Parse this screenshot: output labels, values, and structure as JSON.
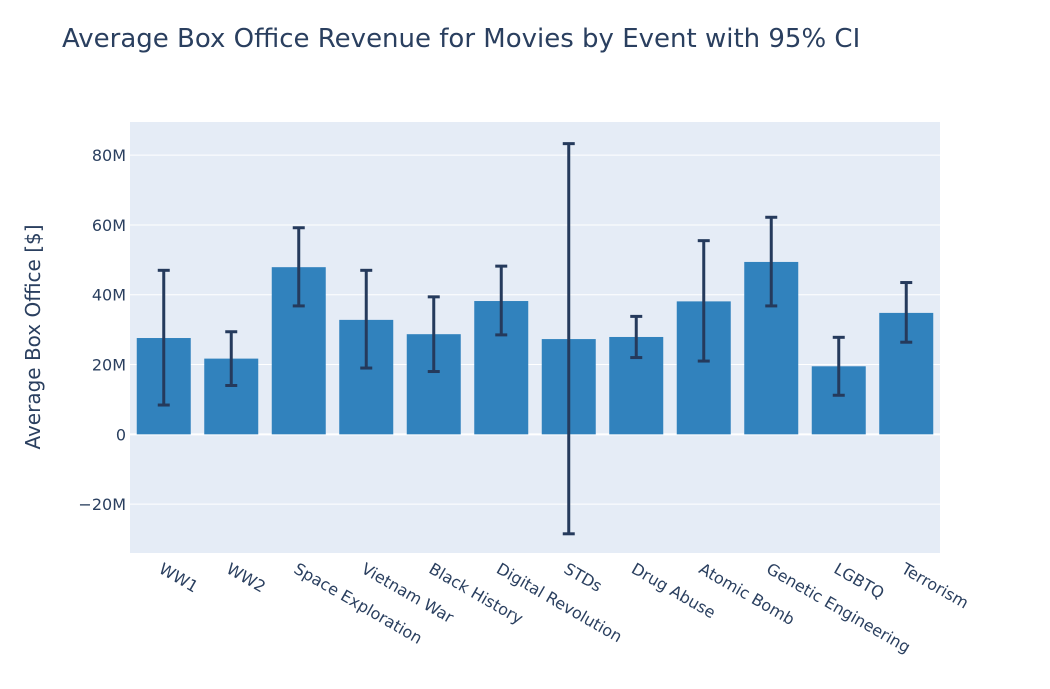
{
  "chart_data": {
    "type": "bar",
    "title": "Average Box Office Revenue for Movies by Event with 95% CI",
    "xlabel": "",
    "ylabel": "Average Box Office [$]",
    "categories": [
      "WW1",
      "WW2",
      "Space Exploration",
      "Vietnam War",
      "Black History",
      "Digital Revolution",
      "STDs",
      "Drug Abuse",
      "Atomic Bomb",
      "Genetic Engineering",
      "LGBTQ",
      "Terrorism"
    ],
    "values": [
      27.6,
      21.7,
      47.9,
      32.8,
      28.7,
      38.2,
      27.3,
      27.9,
      38.1,
      49.4,
      19.5,
      34.8
    ],
    "error_lower": [
      8.4,
      14.0,
      36.8,
      19.0,
      18.0,
      28.5,
      -28.5,
      22.0,
      21.0,
      36.8,
      11.2,
      26.4
    ],
    "error_upper": [
      47.0,
      29.4,
      59.2,
      47.0,
      39.4,
      48.2,
      83.3,
      33.8,
      55.5,
      62.2,
      27.8,
      43.5
    ],
    "value_units": "millions of dollars",
    "ylim": [
      -34,
      89.5
    ],
    "yticks": [
      -20,
      0,
      20,
      40,
      60,
      80
    ],
    "ytick_labels": [
      "−20M",
      "0",
      "20M",
      "40M",
      "60M",
      "80M"
    ],
    "grid": true,
    "colors": {
      "bar": "#3182bd",
      "error_bar": "#253a5c",
      "plot_bg": "#e5ecf6",
      "grid": "#ffffff",
      "text": "#2a3f5f"
    }
  }
}
